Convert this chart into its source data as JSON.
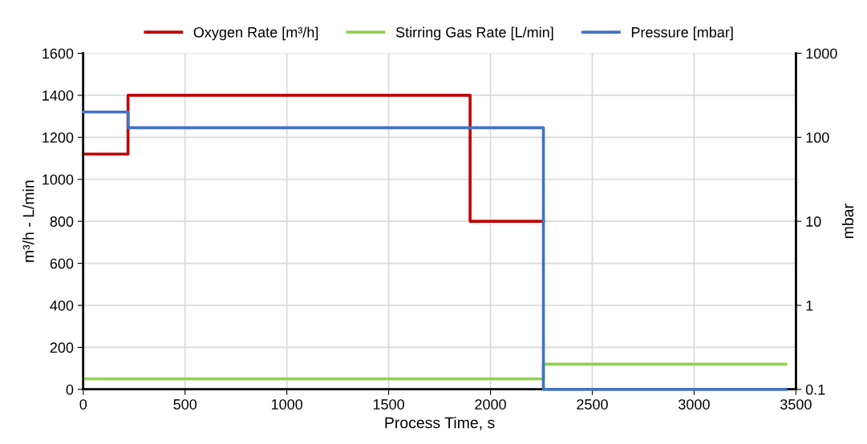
{
  "chart_data": {
    "type": "step",
    "xlabel": "Process Time, s",
    "ylabel": "m³/h - L/min",
    "y2label": "mbar",
    "xlim": [
      0,
      3500
    ],
    "xticks": [
      0,
      500,
      1000,
      1500,
      2000,
      2500,
      3000,
      3500
    ],
    "ylim": [
      0,
      1600
    ],
    "yticks": [
      0,
      200,
      400,
      600,
      800,
      1000,
      1200,
      1400,
      1600
    ],
    "y2lim": [
      0.1,
      1000
    ],
    "y2ticks": [
      0.1,
      1,
      10,
      100,
      1000
    ],
    "log": "y2",
    "grid": true,
    "legend": "top",
    "series": [
      {
        "name": "Oxygen Rate [m³/h]",
        "color": "#c00000",
        "x": [
          0,
          220,
          1900,
          2260
        ],
        "values": [
          1120,
          1400,
          800,
          800
        ]
      },
      {
        "name": "Stirring Gas Rate [L/min]",
        "color": "#92d050",
        "x": [
          0,
          2260,
          3450
        ],
        "values": [
          50,
          120,
          120
        ]
      },
      {
        "name": "Pressure [mbar]",
        "color": "#4472c4",
        "axis": "y2",
        "x": [
          0,
          220,
          2260,
          3450
        ],
        "values": [
          200,
          130,
          0.1,
          0.1
        ]
      }
    ]
  }
}
